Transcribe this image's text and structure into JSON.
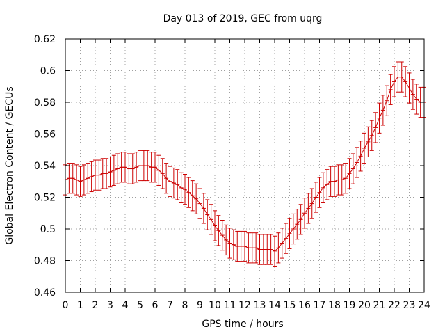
{
  "chart_data": {
    "type": "line",
    "title": "Day 013 of 2019, GEC from uqrg",
    "xlabel": "GPS time / hours",
    "ylabel": "Global Electron Content / GECUs",
    "xlim": [
      0,
      24
    ],
    "ylim": [
      0.46,
      0.62
    ],
    "grid": true,
    "x_ticks": [
      0,
      1,
      2,
      3,
      4,
      5,
      6,
      7,
      8,
      9,
      10,
      11,
      12,
      13,
      14,
      15,
      16,
      17,
      18,
      19,
      20,
      21,
      22,
      23,
      24
    ],
    "x_tick_labels": [
      "0",
      "1",
      "2",
      "3",
      "4",
      "5",
      "6",
      "7",
      "8",
      "9",
      "10",
      "11",
      "12",
      "13",
      "14",
      "15",
      "16",
      "17",
      "18",
      "19",
      "20",
      "21",
      "22",
      "23",
      "24"
    ],
    "y_ticks": [
      0.46,
      0.48,
      0.5,
      0.52,
      0.54,
      0.56,
      0.58,
      0.6,
      0.62
    ],
    "y_tick_labels": [
      "0.46",
      "0.48",
      "0.5",
      "0.52",
      "0.54",
      "0.56",
      "0.58",
      "0.6",
      "0.62"
    ],
    "color": "#cc0000",
    "series": [
      {
        "name": "GEC",
        "error": 0.0095,
        "x": [
          0.0,
          0.25,
          0.5,
          0.75,
          1.0,
          1.25,
          1.5,
          1.75,
          2.0,
          2.25,
          2.5,
          2.75,
          3.0,
          3.25,
          3.5,
          3.75,
          4.0,
          4.25,
          4.5,
          4.75,
          5.0,
          5.25,
          5.5,
          5.75,
          6.0,
          6.25,
          6.5,
          6.75,
          7.0,
          7.25,
          7.5,
          7.75,
          8.0,
          8.25,
          8.5,
          8.75,
          9.0,
          9.25,
          9.5,
          9.75,
          10.0,
          10.25,
          10.5,
          10.75,
          11.0,
          11.25,
          11.5,
          11.75,
          12.0,
          12.25,
          12.5,
          12.75,
          13.0,
          13.25,
          13.5,
          13.75,
          14.0,
          14.25,
          14.5,
          14.75,
          15.0,
          15.25,
          15.5,
          15.75,
          16.0,
          16.25,
          16.5,
          16.75,
          17.0,
          17.25,
          17.5,
          17.75,
          18.0,
          18.25,
          18.5,
          18.75,
          19.0,
          19.25,
          19.5,
          19.75,
          20.0,
          20.25,
          20.5,
          20.75,
          21.0,
          21.25,
          21.5,
          21.75,
          22.0,
          22.25,
          22.5,
          22.75,
          23.0,
          23.25,
          23.5,
          23.75,
          24.0
        ],
        "values": [
          0.531,
          0.532,
          0.532,
          0.531,
          0.53,
          0.531,
          0.532,
          0.533,
          0.534,
          0.534,
          0.535,
          0.535,
          0.536,
          0.537,
          0.538,
          0.539,
          0.539,
          0.538,
          0.538,
          0.539,
          0.54,
          0.54,
          0.54,
          0.539,
          0.539,
          0.537,
          0.535,
          0.532,
          0.53,
          0.529,
          0.528,
          0.526,
          0.525,
          0.523,
          0.521,
          0.519,
          0.516,
          0.513,
          0.509,
          0.506,
          0.502,
          0.499,
          0.496,
          0.493,
          0.491,
          0.49,
          0.489,
          0.489,
          0.489,
          0.488,
          0.488,
          0.488,
          0.487,
          0.487,
          0.487,
          0.487,
          0.486,
          0.488,
          0.491,
          0.494,
          0.497,
          0.5,
          0.503,
          0.506,
          0.51,
          0.513,
          0.516,
          0.52,
          0.523,
          0.526,
          0.528,
          0.53,
          0.53,
          0.531,
          0.531,
          0.532,
          0.535,
          0.538,
          0.542,
          0.546,
          0.551,
          0.555,
          0.559,
          0.564,
          0.57,
          0.575,
          0.581,
          0.588,
          0.593,
          0.596,
          0.596,
          0.593,
          0.589,
          0.585,
          0.582,
          0.58,
          0.58
        ]
      }
    ]
  }
}
